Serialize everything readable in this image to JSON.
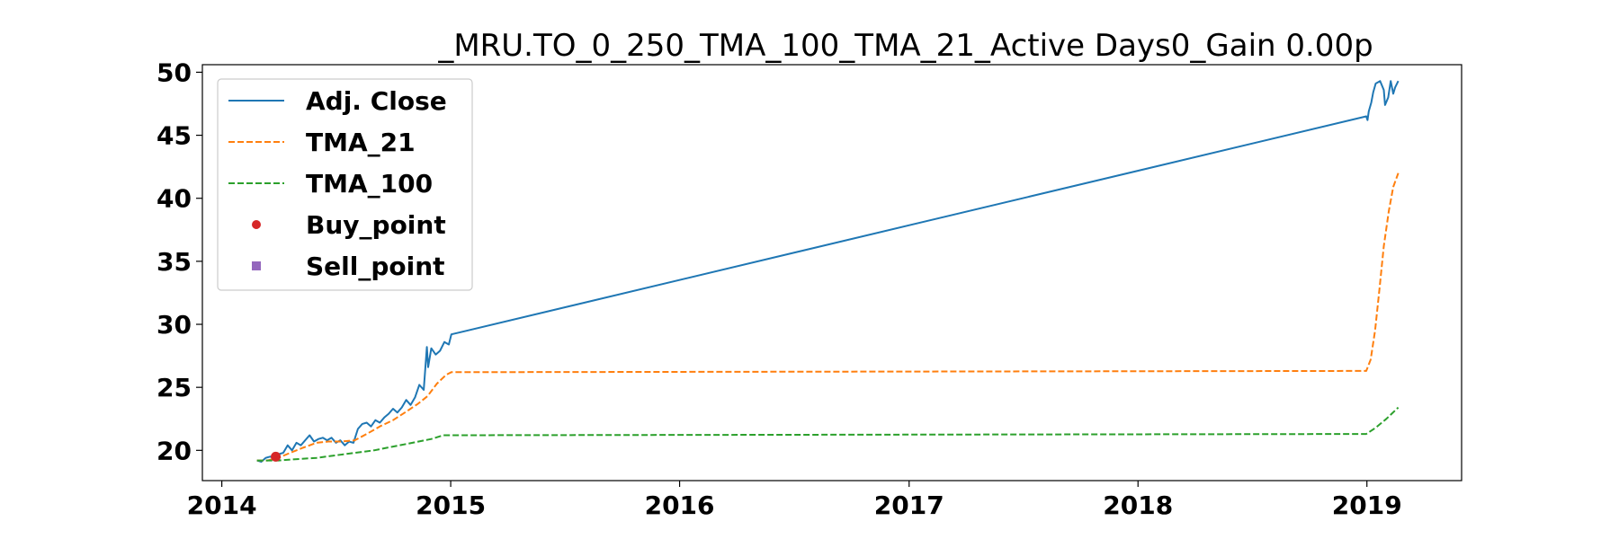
{
  "chart_data": {
    "type": "line",
    "title": "_MRU.TO_0_250_TMA_100_TMA_21_Active Days0_Gain   0.00p",
    "xlabel": "",
    "ylabel": "",
    "xlim": [
      "2013-12-01",
      "2019-06-01"
    ],
    "ylim": [
      17.6,
      50.6
    ],
    "x_ticks": [
      "2014",
      "2015",
      "2016",
      "2017",
      "2018",
      "2019"
    ],
    "y_ticks": [
      20,
      25,
      30,
      35,
      40,
      45,
      50
    ],
    "grid": false,
    "legend_position": "upper-left",
    "series": [
      {
        "name": "Adj. Close",
        "color": "#1f77b4",
        "style": "solid",
        "points": [
          [
            "2014-02-26",
            19.2
          ],
          [
            "2014-03-05",
            19.1
          ],
          [
            "2014-03-12",
            19.4
          ],
          [
            "2014-03-19",
            19.5
          ],
          [
            "2014-03-26",
            19.4
          ],
          [
            "2014-04-02",
            19.7
          ],
          [
            "2014-04-09",
            19.8
          ],
          [
            "2014-04-16",
            20.4
          ],
          [
            "2014-04-23",
            20.0
          ],
          [
            "2014-04-30",
            20.6
          ],
          [
            "2014-05-07",
            20.4
          ],
          [
            "2014-05-14",
            20.8
          ],
          [
            "2014-05-21",
            21.2
          ],
          [
            "2014-05-28",
            20.7
          ],
          [
            "2014-06-04",
            20.9
          ],
          [
            "2014-06-11",
            21.0
          ],
          [
            "2014-06-18",
            20.8
          ],
          [
            "2014-06-25",
            21.0
          ],
          [
            "2014-07-02",
            20.6
          ],
          [
            "2014-07-09",
            20.8
          ],
          [
            "2014-07-16",
            20.4
          ],
          [
            "2014-07-23",
            20.7
          ],
          [
            "2014-07-30",
            20.6
          ],
          [
            "2014-08-06",
            21.7
          ],
          [
            "2014-08-13",
            22.1
          ],
          [
            "2014-08-20",
            22.2
          ],
          [
            "2014-08-27",
            21.9
          ],
          [
            "2014-09-03",
            22.4
          ],
          [
            "2014-09-10",
            22.2
          ],
          [
            "2014-09-17",
            22.6
          ],
          [
            "2014-09-24",
            22.9
          ],
          [
            "2014-10-01",
            23.3
          ],
          [
            "2014-10-08",
            23.0
          ],
          [
            "2014-10-15",
            23.4
          ],
          [
            "2014-10-22",
            24.0
          ],
          [
            "2014-10-29",
            23.6
          ],
          [
            "2014-11-05",
            24.2
          ],
          [
            "2014-11-12",
            25.2
          ],
          [
            "2014-11-19",
            24.8
          ],
          [
            "2014-11-24",
            28.2
          ],
          [
            "2014-11-26",
            26.6
          ],
          [
            "2014-12-01",
            28.1
          ],
          [
            "2014-12-08",
            27.6
          ],
          [
            "2014-12-15",
            27.9
          ],
          [
            "2014-12-22",
            28.6
          ],
          [
            "2014-12-29",
            28.4
          ],
          [
            "2015-01-02",
            29.2
          ],
          [
            "2018-12-31",
            46.5
          ],
          [
            "2019-01-02",
            46.2
          ],
          [
            "2019-01-04",
            46.9
          ],
          [
            "2019-01-08",
            47.6
          ],
          [
            "2019-01-11",
            48.4
          ],
          [
            "2019-01-15",
            49.1
          ],
          [
            "2019-01-22",
            49.3
          ],
          [
            "2019-01-28",
            48.6
          ],
          [
            "2019-01-30",
            47.4
          ],
          [
            "2019-02-04",
            48.0
          ],
          [
            "2019-02-08",
            49.3
          ],
          [
            "2019-02-12",
            48.3
          ],
          [
            "2019-02-15",
            48.8
          ],
          [
            "2019-02-20",
            49.3
          ]
        ]
      },
      {
        "name": "TMA_21",
        "color": "#ff7f0e",
        "style": "dashed",
        "points": [
          [
            "2014-02-26",
            19.2
          ],
          [
            "2014-03-15",
            19.2
          ],
          [
            "2014-04-01",
            19.4
          ],
          [
            "2014-04-20",
            19.8
          ],
          [
            "2014-05-10",
            20.2
          ],
          [
            "2014-06-01",
            20.6
          ],
          [
            "2014-06-20",
            20.7
          ],
          [
            "2014-07-10",
            20.7
          ],
          [
            "2014-08-01",
            20.8
          ],
          [
            "2014-08-20",
            21.3
          ],
          [
            "2014-09-10",
            21.9
          ],
          [
            "2014-10-01",
            22.4
          ],
          [
            "2014-10-20",
            23.0
          ],
          [
            "2014-11-10",
            23.7
          ],
          [
            "2014-11-25",
            24.3
          ],
          [
            "2014-12-10",
            25.3
          ],
          [
            "2014-12-25",
            26.0
          ],
          [
            "2015-01-02",
            26.2
          ],
          [
            "2018-12-31",
            26.3
          ],
          [
            "2019-01-07",
            27.2
          ],
          [
            "2019-01-14",
            29.5
          ],
          [
            "2019-01-21",
            32.8
          ],
          [
            "2019-01-28",
            36.2
          ],
          [
            "2019-02-05",
            39.0
          ],
          [
            "2019-02-12",
            40.9
          ],
          [
            "2019-02-20",
            42.0
          ]
        ]
      },
      {
        "name": "TMA_100",
        "color": "#2ca02c",
        "style": "dashed",
        "points": [
          [
            "2014-02-26",
            19.2
          ],
          [
            "2014-04-01",
            19.2
          ],
          [
            "2014-05-01",
            19.3
          ],
          [
            "2014-06-01",
            19.4
          ],
          [
            "2014-07-01",
            19.6
          ],
          [
            "2014-08-01",
            19.8
          ],
          [
            "2014-09-01",
            20.0
          ],
          [
            "2014-10-01",
            20.3
          ],
          [
            "2014-11-01",
            20.6
          ],
          [
            "2014-12-01",
            20.9
          ],
          [
            "2014-12-20",
            21.2
          ],
          [
            "2015-01-02",
            21.2
          ],
          [
            "2018-12-31",
            21.3
          ],
          [
            "2019-01-15",
            21.8
          ],
          [
            "2019-02-01",
            22.5
          ],
          [
            "2019-02-20",
            23.4
          ]
        ]
      },
      {
        "name": "Buy_point",
        "color": "#d62728",
        "style": "marker-circle",
        "points": [
          [
            "2014-03-28",
            19.5
          ]
        ]
      },
      {
        "name": "Sell_point",
        "color": "#9467bd",
        "style": "marker-square",
        "points": []
      }
    ]
  }
}
